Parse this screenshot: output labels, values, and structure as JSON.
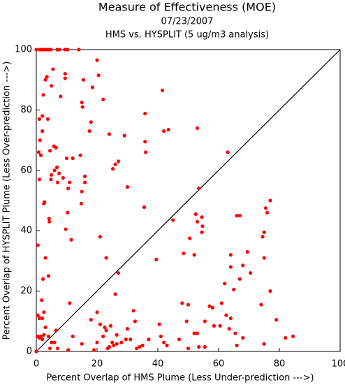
{
  "chart_data": {
    "type": "scatter",
    "title": "Measure of Effectiveness (MOE)",
    "subtitle": "07/23/2007",
    "subtitle2": "HMS vs. HYSPLIT  (5 ug/m3 analysis)",
    "x_label": "Percent Overlap of HMS Plume (Less Under-prediction --->)",
    "y_label": "Percent Overlap of HYSPLIT Plume (Less Over-prediction --->)",
    "color": "#ff0000",
    "diagonal": true,
    "xlim": [
      0,
      100
    ],
    "ylim": [
      0,
      100
    ],
    "xticks": [
      0,
      20,
      40,
      60,
      80,
      100
    ],
    "yticks": [
      0,
      20,
      40,
      60,
      80,
      100
    ],
    "x": [
      0,
      1.1,
      1.8,
      2.5,
      3.4,
      4.1,
      4.8,
      6.9,
      7.6,
      9.4,
      10.3,
      14,
      0.5,
      0.8,
      1,
      1,
      1.2,
      1.5,
      2,
      2,
      2.3,
      2.5,
      2.7,
      3,
      3.5,
      3.8,
      4.2,
      4.3,
      4.5,
      4.8,
      5,
      5,
      5.5,
      5.8,
      6,
      6.5,
      6.8,
      7,
      7.5,
      8,
      8.8,
      9.5,
      9.5,
      9.7,
      10,
      10.3,
      10.5,
      11,
      11.5,
      12,
      14.5,
      14.8,
      15,
      15,
      15.2,
      15.5,
      16,
      16,
      17.5,
      18,
      18.5,
      20,
      20.5,
      21,
      22,
      23,
      24,
      25.2,
      26,
      27,
      29,
      30,
      35.5,
      35.8,
      35.8,
      36,
      41.5,
      42,
      43.5,
      45,
      53,
      53.5,
      52.5,
      53,
      54.5,
      54.5,
      54.7,
      50.5,
      52,
      48.5,
      39.5,
      63,
      66,
      67,
      75,
      75.5,
      76,
      77,
      74.5,
      75,
      69.5,
      68,
      70.5,
      64,
      62,
      65,
      64,
      67,
      61,
      57,
      58,
      58.5,
      60.5,
      62.5,
      64,
      63.5,
      65.5,
      68,
      66,
      74,
      75,
      77,
      79,
      82,
      84.5,
      53.5,
      55.5,
      53,
      52,
      55.5,
      48,
      50,
      49.5,
      50,
      47,
      43,
      42,
      40.5,
      41,
      37,
      35,
      34,
      33,
      32,
      31,
      32.5,
      30,
      29.5,
      28,
      26.5,
      26.5,
      27,
      26,
      24.5,
      23,
      22.5,
      21,
      22,
      24,
      25,
      23.5,
      25.5,
      20,
      20,
      19,
      18,
      15,
      12,
      11,
      10.5,
      7,
      6.5,
      6,
      5,
      4.5,
      4,
      4,
      3,
      2.5,
      2,
      1.8,
      2.2,
      1.5,
      1,
      1,
      0.5,
      0.5,
      2,
      2.5,
      3,
      0
    ],
    "values": [
      100,
      100,
      100,
      100,
      100,
      100,
      100,
      100,
      100,
      100,
      100,
      100,
      35.2,
      66,
      57,
      77,
      70,
      65,
      73,
      78,
      85,
      49,
      49.5,
      90,
      91,
      77,
      44,
      43,
      66.5,
      57,
      58.5,
      88,
      93.5,
      68,
      60,
      67.5,
      61,
      56,
      59,
      84.5,
      57.5,
      92,
      90.5,
      40.5,
      64,
      46,
      54,
      56,
      37,
      64,
      65,
      49,
      53,
      82.5,
      81,
      90,
      58,
      56,
      73,
      76,
      87.5,
      96.5,
      91.5,
      38,
      83.5,
      31,
      72,
      60.5,
      62,
      63,
      71.5,
      54.5,
      47.8,
      69.5,
      78.8,
      66,
      86.5,
      73,
      73.5,
      43.5,
      74,
      54,
      45.5,
      43,
      44.5,
      39.5,
      41.5,
      37.5,
      32,
      32.5,
      30.5,
      66,
      45,
      45,
      39.5,
      47.5,
      46,
      50,
      38,
      31,
      33,
      28.5,
      26,
      28,
      22.5,
      20.5,
      32,
      24,
      16,
      15,
      14.5,
      8.5,
      8.5,
      12,
      11,
      7.5,
      6,
      4.5,
      2,
      15.5,
      2.5,
      20,
      10.5,
      4.5,
      5,
      1.5,
      1.5,
      6,
      6,
      10,
      16,
      15.5,
      10,
      1,
      4,
      2,
      3,
      9,
      5,
      4,
      2,
      1.5,
      1,
      13.5,
      4,
      10,
      7.5,
      4,
      3,
      5.5,
      2.5,
      26,
      19,
      8.5,
      7,
      8,
      9,
      5,
      1.5,
      3,
      1,
      2,
      13,
      3,
      0.5,
      10.5,
      2.5,
      5,
      16,
      0.5,
      1,
      7,
      3,
      3,
      1,
      5,
      25,
      8,
      13,
      11,
      17,
      24,
      5,
      11,
      4.5,
      5,
      12,
      4,
      5.5,
      31,
      0
    ]
  }
}
